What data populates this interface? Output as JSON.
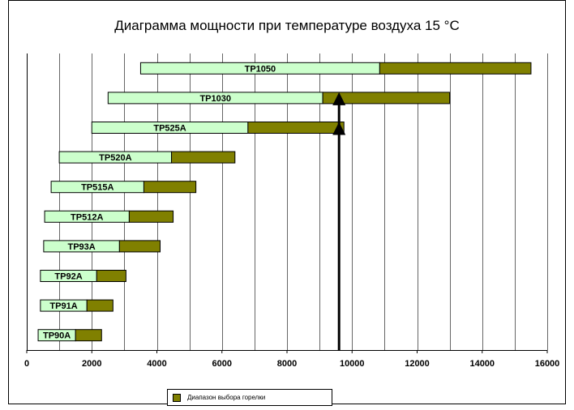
{
  "chart_data": {
    "type": "bar",
    "orientation": "horizontal",
    "stacked": true,
    "title": "Диаграмма мощности при температуре воздуха 15 °C",
    "xlim": [
      0,
      16000
    ],
    "x_ticks": [
      "0",
      "2000",
      "4000",
      "6000",
      "8000",
      "10000",
      "12000",
      "14000",
      "16000"
    ],
    "grid": "vertical",
    "categories": [
      "TP1050",
      "TP1030",
      "TP525A",
      "TP520A",
      "TP515A",
      "TP512A",
      "TP93A",
      "TP92A",
      "TP91A",
      "TP90A"
    ],
    "series": [
      {
        "color": "#ccffcc",
        "start": [
          3500,
          2500,
          2000,
          1000,
          750,
          550,
          520,
          420,
          420,
          350
        ],
        "end": [
          10850,
          9100,
          6800,
          4450,
          3600,
          3150,
          2850,
          2150,
          1850,
          1500
        ]
      },
      {
        "name": "Диапазон выбора горелки",
        "color": "#808000",
        "start": [
          10850,
          9100,
          6800,
          4450,
          3600,
          3150,
          2850,
          2150,
          1850,
          1500
        ],
        "end": [
          15500,
          13000,
          9750,
          6400,
          5200,
          4500,
          4100,
          3050,
          2650,
          2300
        ]
      }
    ],
    "annotations": [
      {
        "type": "vertical-arrow",
        "x": 9600,
        "arrowheads_at": [
          "TP1030",
          "TP525A"
        ]
      }
    ],
    "legend_position": "bottom"
  }
}
